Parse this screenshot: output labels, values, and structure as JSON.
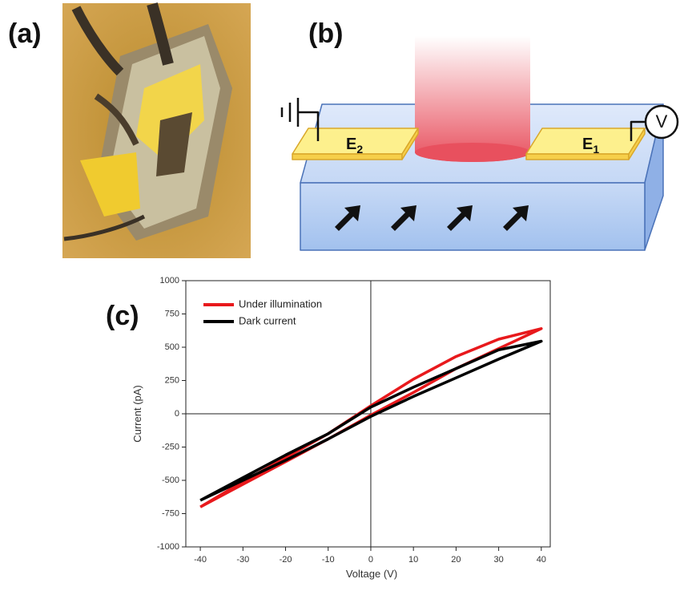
{
  "panel_labels": [
    "(a)",
    "(b)",
    "(c)"
  ],
  "diagram": {
    "electrodes": [
      {
        "letter": "E",
        "subscript": "2"
      },
      {
        "letter": "E",
        "subscript": "1"
      }
    ],
    "meter": "V"
  },
  "chart_data": {
    "type": "line",
    "xlabel": "Voltage (V)",
    "ylabel": "Current (pA)",
    "x": [
      -40,
      -30,
      -20,
      -10,
      0,
      10,
      20,
      30,
      40,
      30,
      20,
      10,
      0,
      -10,
      -20,
      -30,
      -40
    ],
    "series": [
      {
        "name": "Under illumination",
        "color": "#e8191c",
        "values": [
          -700,
          -530,
          -360,
          -190,
          -10,
          160,
          340,
          490,
          640,
          560,
          430,
          260,
          60,
          -150,
          -330,
          -510,
          -700
        ]
      },
      {
        "name": "Dark current",
        "color": "#000000",
        "values": [
          -650,
          -500,
          -350,
          -190,
          -20,
          130,
          270,
          410,
          545,
          480,
          340,
          200,
          50,
          -150,
          -310,
          -480,
          -650
        ]
      }
    ],
    "xlim": [
      -43.4,
      42.1
    ],
    "ylim": [
      -1000,
      1000
    ],
    "xticks": [
      -40,
      -30,
      -20,
      -10,
      0,
      10,
      20,
      30,
      40
    ],
    "yticks": [
      -1000,
      -750,
      -500,
      -250,
      0,
      250,
      500,
      750,
      1000
    ],
    "legend": "upper-left"
  }
}
